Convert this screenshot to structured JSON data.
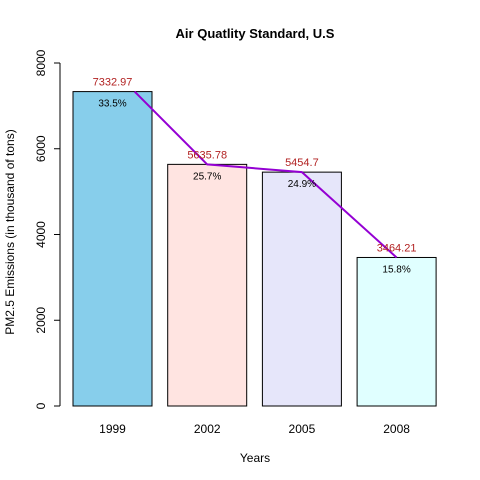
{
  "chart_data": {
    "type": "bar",
    "title": "Air Quatlity Standard, U.S",
    "xlabel": "Years",
    "ylabel": "PM2.5 Emissions (in thousand of tons)",
    "categories": [
      "1999",
      "2002",
      "2005",
      "2008"
    ],
    "values": [
      7332.97,
      5635.78,
      5454.7,
      3464.21
    ],
    "value_labels": [
      "7332.97",
      "5635.78",
      "5454.7",
      "3464.21"
    ],
    "percent_labels": [
      "33.5%",
      "25.7%",
      "24.9%",
      "15.8%"
    ],
    "bar_colors": [
      "#87CEEB",
      "#FFE4E1",
      "#E6E6FA",
      "#E0FFFF"
    ],
    "value_label_color": "#B22222",
    "trend_line_color": "#9400D3",
    "ylim": [
      0,
      8000
    ],
    "yticks": [
      0,
      2000,
      4000,
      6000,
      8000
    ],
    "ytick_labels": [
      "0",
      "2000",
      "4000",
      "6000",
      "8000"
    ],
    "grid": false,
    "legend": "none"
  }
}
